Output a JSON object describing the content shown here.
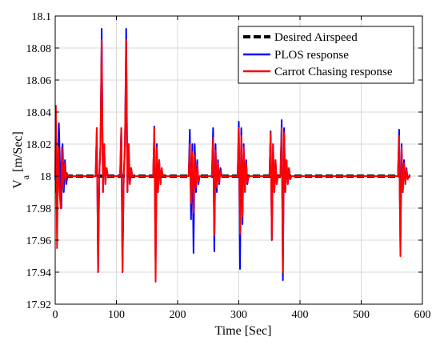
{
  "chart_data": {
    "type": "line",
    "title": "",
    "xlabel": "Time  [Sec]",
    "ylabel_main": "V",
    "ylabel_sub": "a",
    "ylabel_unit": "[m/Sec]",
    "xlim": [
      0,
      600
    ],
    "ylim": [
      17.92,
      18.1
    ],
    "xticks": [
      0,
      100,
      200,
      300,
      400,
      500,
      600
    ],
    "yticks": [
      17.92,
      17.94,
      17.96,
      17.98,
      18.0,
      18.02,
      18.04,
      18.06,
      18.08,
      18.1
    ],
    "xtick_labels": [
      "0",
      "100",
      "200",
      "300",
      "400",
      "500",
      "600"
    ],
    "ytick_labels": [
      "17.92",
      "17.94",
      "17.96",
      "17.98",
      "18",
      "18.02",
      "18.04",
      "18.06",
      "18.08",
      "18.1"
    ],
    "grid": true,
    "legend_position": "top-right",
    "series": [
      {
        "name": "Desired Airspeed",
        "color": "#000000",
        "style": "dashed",
        "x": [
          0,
          580
        ],
        "y": [
          18.0,
          18.0
        ]
      },
      {
        "name": "PLOS response",
        "color": "#0000ff",
        "style": "solid",
        "x": [
          0,
          2,
          4,
          6,
          8,
          10,
          12,
          14,
          16,
          18,
          20,
          66,
          68,
          70,
          72,
          74,
          76,
          78,
          80,
          82,
          84,
          86,
          106,
          108,
          110,
          112,
          114,
          116,
          118,
          120,
          122,
          124,
          126,
          160,
          162,
          164,
          166,
          168,
          170,
          172,
          174,
          176,
          218,
          220,
          222,
          224,
          226,
          228,
          230,
          232,
          234,
          236,
          256,
          258,
          260,
          262,
          264,
          266,
          268,
          270,
          272,
          298,
          300,
          302,
          304,
          306,
          308,
          310,
          312,
          314,
          316,
          350,
          352,
          354,
          356,
          358,
          360,
          362,
          364,
          366,
          368,
          370,
          372,
          374,
          376,
          378,
          380,
          382,
          384,
          386,
          560,
          562,
          564,
          566,
          568,
          570,
          572,
          574,
          576,
          578,
          580
        ],
        "y": [
          18.0,
          17.99,
          18.01,
          18.033,
          18.005,
          17.98,
          18.02,
          17.99,
          18.01,
          17.995,
          18.0,
          18.0,
          18.03,
          17.94,
          18.0,
          18.02,
          18.092,
          17.99,
          18.02,
          17.995,
          18.005,
          18.0,
          18.0,
          18.03,
          17.94,
          18.0,
          18.02,
          18.092,
          17.99,
          18.02,
          17.995,
          18.005,
          18.0,
          18.0,
          18.031,
          17.945,
          18.02,
          17.99,
          18.01,
          17.995,
          18.005,
          18.0,
          18.0,
          18.029,
          17.973,
          18.02,
          17.952,
          18.02,
          17.99,
          18.01,
          17.995,
          18.0,
          18.0,
          18.03,
          17.953,
          18.02,
          17.99,
          18.01,
          17.995,
          18.005,
          18.0,
          18.0,
          18.034,
          17.942,
          18.03,
          17.97,
          18.02,
          17.99,
          18.01,
          17.995,
          18.0,
          18.0,
          18.028,
          17.96,
          18.02,
          17.99,
          18.01,
          17.995,
          18.0,
          18.0,
          18.0,
          18.035,
          17.935,
          18.03,
          17.99,
          18.01,
          17.995,
          18.005,
          17.998,
          18.0,
          18.0,
          18.029,
          17.955,
          18.02,
          17.99,
          18.01,
          17.995,
          18.005,
          17.998,
          18.0,
          18.0
        ]
      },
      {
        "name": "Carrot Chasing response",
        "color": "#ff0000",
        "style": "solid",
        "x": [
          0,
          1,
          3,
          5,
          7,
          9,
          11,
          13,
          15,
          17,
          19,
          21,
          66,
          68,
          70,
          72,
          74,
          76,
          78,
          80,
          82,
          84,
          86,
          106,
          108,
          110,
          112,
          114,
          116,
          118,
          120,
          122,
          124,
          126,
          160,
          162,
          164,
          166,
          168,
          170,
          172,
          174,
          176,
          218,
          220,
          222,
          224,
          226,
          228,
          230,
          232,
          234,
          236,
          256,
          258,
          260,
          262,
          264,
          266,
          268,
          270,
          272,
          298,
          300,
          302,
          304,
          306,
          308,
          310,
          312,
          314,
          316,
          350,
          352,
          354,
          356,
          358,
          360,
          362,
          364,
          366,
          368,
          370,
          372,
          374,
          376,
          378,
          380,
          382,
          384,
          386,
          560,
          562,
          564,
          566,
          568,
          570,
          572,
          574,
          576,
          578,
          580
        ],
        "y": [
          18.0,
          18.044,
          17.955,
          18.018,
          17.99,
          17.98,
          18.018,
          17.992,
          18.008,
          17.997,
          18.002,
          18.0,
          18.0,
          18.03,
          17.94,
          18.0,
          18.02,
          18.085,
          17.99,
          18.02,
          17.995,
          18.005,
          18.0,
          18.0,
          18.03,
          17.94,
          18.0,
          18.02,
          18.085,
          17.99,
          18.02,
          17.995,
          18.005,
          18.0,
          18.0,
          18.03,
          17.934,
          18.018,
          17.99,
          18.01,
          17.995,
          18.005,
          18.0,
          18.0,
          18.02,
          17.983,
          18.015,
          17.977,
          18.013,
          17.993,
          18.007,
          17.997,
          18.0,
          18.0,
          18.024,
          17.963,
          18.016,
          17.993,
          18.008,
          17.996,
          18.003,
          18.0,
          18.0,
          18.03,
          17.964,
          18.025,
          17.975,
          18.018,
          17.99,
          18.008,
          17.996,
          18.0,
          18.0,
          18.027,
          17.96,
          18.02,
          17.99,
          18.01,
          17.995,
          18.0,
          18.0,
          18.0,
          18.03,
          17.94,
          18.027,
          17.99,
          18.01,
          17.995,
          18.005,
          17.998,
          18.0,
          18.0,
          18.025,
          17.95,
          18.018,
          17.99,
          18.008,
          17.995,
          18.004,
          17.998,
          18.0,
          18.0
        ]
      }
    ]
  }
}
